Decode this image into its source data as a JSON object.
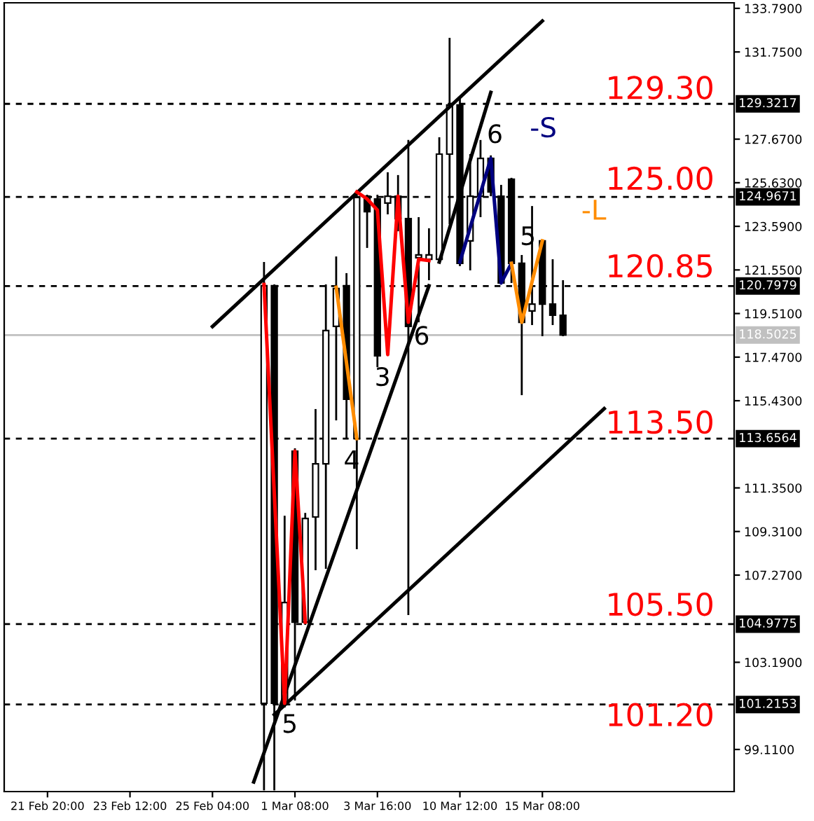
{
  "chart_data": {
    "type": "candlestick",
    "categories": [
      "21 Feb 20:00",
      null,
      null,
      null,
      null,
      null,
      null,
      null,
      "23 Feb 12:00",
      null,
      null,
      null,
      null,
      null,
      null,
      null,
      "25 Feb 04:00",
      null,
      null,
      null,
      null,
      null,
      null,
      null,
      "1 Mar 08:00",
      null,
      null,
      null,
      null,
      null,
      null,
      null,
      "3 Mar 16:00",
      null,
      null,
      null,
      null,
      null,
      null,
      null,
      "10 Mar 12:00",
      null,
      null,
      null,
      null,
      null,
      null,
      null,
      "15 Mar 08:00",
      null,
      null,
      null,
      null,
      null,
      null,
      null,
      null,
      null,
      null,
      null,
      null,
      null,
      null,
      null,
      null,
      null,
      null
    ],
    "ohlc": [
      null,
      null,
      null,
      null,
      null,
      null,
      null,
      null,
      null,
      null,
      null,
      null,
      null,
      null,
      null,
      null,
      null,
      null,
      null,
      null,
      null,
      [
        101.27,
        121.92,
        97.2,
        120.81
      ],
      [
        120.81,
        120.87,
        97.2,
        101.27
      ],
      [
        101.27,
        110.05,
        101.07,
        105.99
      ],
      [
        113.07,
        113.2,
        101.4,
        105.07
      ],
      [
        105.07,
        110.18,
        104.94,
        109.92
      ],
      [
        109.99,
        115.04,
        107.5,
        112.48
      ],
      [
        112.48,
        120.87,
        107.56,
        118.71
      ],
      [
        118.91,
        122.18,
        114.51,
        120.68
      ],
      [
        120.81,
        121.4,
        113.66,
        115.5
      ],
      [
        113.66,
        125.13,
        108.48,
        124.94
      ],
      [
        125.0,
        125.07,
        122.58,
        124.28
      ],
      [
        124.87,
        125.07,
        117.0,
        117.53
      ],
      [
        124.68,
        126.12,
        124.15,
        125.0
      ],
      [
        125.0,
        125.99,
        123.36,
        123.95
      ],
      [
        123.95,
        127.63,
        105.4,
        118.91
      ],
      [
        122.12,
        124.02,
        119.1,
        122.25
      ],
      [
        122.05,
        123.5,
        121.07,
        122.25
      ],
      [
        122.05,
        127.76,
        121.92,
        126.97
      ],
      [
        126.97,
        132.41,
        123.69,
        129.27
      ],
      [
        129.27,
        129.59,
        121.73,
        121.86
      ],
      [
        122.91,
        126.97,
        121.53,
        125.0
      ],
      [
        125.0,
        127.63,
        124.02,
        126.77
      ],
      [
        126.77,
        126.91,
        125.0,
        125.2
      ],
      [
        125.0,
        125.53,
        120.87,
        120.94
      ],
      [
        125.79,
        125.86,
        120.94,
        121.86
      ],
      [
        121.86,
        122.25,
        115.69,
        119.1
      ],
      [
        119.63,
        124.54,
        118.97,
        119.95
      ],
      [
        122.91,
        122.97,
        118.45,
        119.95
      ],
      [
        119.95,
        122.05,
        118.97,
        119.43
      ],
      [
        119.43,
        121.07,
        118.45,
        118.51
      ],
      null,
      null,
      null,
      null,
      null,
      null,
      null,
      null,
      null,
      null,
      null,
      null,
      null,
      null,
      null,
      null
    ],
    "colors": [
      null,
      null,
      null,
      null,
      null,
      null,
      null,
      null,
      null,
      null,
      null,
      null,
      null,
      null,
      null,
      null,
      null,
      null,
      null,
      null,
      null,
      "#ffffff",
      "#000000",
      "#ffffff",
      "#000000",
      "#ffffff",
      "#ffffff",
      "#ffffff",
      "#ffffff",
      "#000000",
      "#ffffff",
      "#000000",
      "#000000",
      "#ffffff",
      "#000000",
      "#000000",
      "#ffffff",
      "#ffffff",
      "#ffffff",
      "#ffffff",
      "#000000",
      "#ffffff",
      "#ffffff",
      "#000000",
      "#000000",
      "#000000",
      "#000000",
      "#ffffff",
      "#000000",
      "#000000",
      "#000000",
      null,
      null,
      null,
      null,
      null,
      null,
      null,
      null,
      null,
      null,
      null,
      null,
      null,
      null,
      null,
      null
    ],
    "series": [
      {
        "type": "line",
        "color": "#000000",
        "values": [
          null,
          null,
          null,
          null,
          null,
          null,
          null,
          null,
          null,
          null,
          null,
          null,
          null,
          null,
          null,
          null,
          118.9,
          null,
          null,
          null,
          null,
          null,
          null,
          null,
          null,
          null,
          null,
          null,
          null,
          null,
          null,
          null,
          null,
          null,
          null,
          null,
          null,
          null,
          null,
          null,
          null,
          null,
          null,
          null,
          null,
          null,
          null,
          null,
          133.2,
          null,
          null,
          null,
          null,
          null,
          null,
          null,
          null,
          null,
          null,
          null,
          null,
          null,
          null,
          null,
          null,
          null,
          null
        ]
      },
      {
        "type": "line",
        "color": "#000000",
        "values": [
          null,
          null,
          null,
          null,
          null,
          null,
          null,
          null,
          null,
          null,
          null,
          null,
          null,
          null,
          null,
          null,
          null,
          null,
          null,
          null,
          null,
          null,
          100.74,
          null,
          null,
          null,
          null,
          null,
          null,
          null,
          null,
          null,
          null,
          null,
          null,
          null,
          null,
          null,
          null,
          null,
          null,
          null,
          null,
          null,
          null,
          null,
          null,
          null,
          null,
          null,
          null,
          null,
          null,
          null,
          115.06,
          null,
          null,
          null,
          null,
          null,
          null,
          null,
          null,
          null,
          null,
          null,
          null
        ]
      },
      {
        "type": "line",
        "color": "#000000",
        "values": [
          null,
          null,
          null,
          null,
          null,
          null,
          null,
          null,
          null,
          null,
          null,
          null,
          null,
          null,
          null,
          null,
          null,
          null,
          null,
          null,
          97.59,
          null,
          null,
          null,
          null,
          null,
          null,
          null,
          null,
          null,
          null,
          null,
          null,
          null,
          null,
          null,
          null,
          120.81,
          null,
          null,
          null,
          null,
          null,
          null,
          null,
          null,
          null,
          null,
          null,
          null,
          null,
          null,
          null,
          null,
          null,
          null,
          null,
          null,
          null,
          null,
          null,
          null,
          null,
          null,
          null,
          null,
          null
        ]
      },
      {
        "type": "line",
        "color": "#000000",
        "values": [
          null,
          null,
          null,
          null,
          null,
          null,
          null,
          null,
          null,
          null,
          null,
          null,
          null,
          null,
          null,
          null,
          null,
          null,
          null,
          null,
          null,
          null,
          null,
          null,
          null,
          null,
          null,
          null,
          null,
          null,
          null,
          null,
          null,
          null,
          null,
          null,
          null,
          null,
          121.92,
          null,
          null,
          null,
          null,
          129.86,
          null,
          null,
          null,
          null,
          null,
          null,
          null,
          null,
          null,
          null,
          null,
          null,
          null,
          null,
          null,
          null,
          null,
          null,
          null,
          null,
          null,
          null,
          null
        ]
      },
      {
        "type": "line",
        "color": "#ff0000",
        "values": [
          null,
          null,
          null,
          null,
          null,
          null,
          null,
          null,
          null,
          null,
          null,
          null,
          null,
          null,
          null,
          null,
          null,
          null,
          null,
          null,
          null,
          120.87,
          null,
          101.27,
          113.07,
          105.07,
          null,
          null,
          null,
          null,
          null,
          null,
          null,
          null,
          null,
          null,
          null,
          null,
          null,
          null,
          null,
          null,
          null,
          null,
          null,
          null,
          null,
          null,
          null,
          null,
          null,
          null,
          null,
          null,
          null,
          null,
          null,
          null,
          null,
          null,
          null,
          null,
          null,
          null,
          null,
          null,
          null
        ]
      },
      {
        "type": "line",
        "color": "#ff8c00",
        "values": [
          null,
          null,
          null,
          null,
          null,
          null,
          null,
          null,
          null,
          null,
          null,
          null,
          null,
          null,
          null,
          null,
          null,
          null,
          null,
          null,
          null,
          null,
          null,
          null,
          null,
          null,
          null,
          null,
          120.74,
          null,
          113.66,
          null,
          null,
          null,
          null,
          null,
          null,
          null,
          null,
          null,
          null,
          null,
          null,
          null,
          null,
          null,
          null,
          null,
          null,
          null,
          null,
          null,
          null,
          null,
          null,
          null,
          null,
          null,
          null,
          null,
          null,
          null,
          null,
          null,
          null,
          null,
          null
        ]
      },
      {
        "type": "line",
        "color": "#ff0000",
        "values": [
          null,
          null,
          null,
          null,
          null,
          null,
          null,
          null,
          null,
          null,
          null,
          null,
          null,
          null,
          null,
          null,
          null,
          null,
          null,
          null,
          null,
          null,
          null,
          null,
          null,
          null,
          null,
          null,
          null,
          null,
          125.2,
          124.87,
          124.35,
          117.59,
          125.0,
          119.1,
          122.05,
          121.99,
          null,
          null,
          null,
          null,
          null,
          null,
          null,
          null,
          null,
          null,
          null,
          null,
          null,
          null,
          null,
          null,
          null,
          null,
          null,
          null,
          null,
          null,
          null,
          null,
          null,
          null,
          null,
          null,
          null
        ]
      },
      {
        "type": "line",
        "color": "#000080",
        "name": "-S",
        "values": [
          null,
          null,
          null,
          null,
          null,
          null,
          null,
          null,
          null,
          null,
          null,
          null,
          null,
          null,
          null,
          null,
          null,
          null,
          null,
          null,
          null,
          null,
          null,
          null,
          null,
          null,
          null,
          null,
          null,
          null,
          null,
          null,
          null,
          null,
          null,
          null,
          null,
          null,
          null,
          null,
          121.92,
          null,
          null,
          126.77,
          120.94,
          121.86,
          null,
          null,
          null,
          null,
          null,
          null,
          null,
          null,
          null,
          null,
          null,
          null,
          null,
          null,
          null,
          null,
          null,
          null,
          null,
          null,
          null
        ]
      },
      {
        "type": "line",
        "color": "#ff8c00",
        "name": "-L",
        "values": [
          null,
          null,
          null,
          null,
          null,
          null,
          null,
          null,
          null,
          null,
          null,
          null,
          null,
          null,
          null,
          null,
          null,
          null,
          null,
          null,
          null,
          null,
          null,
          null,
          null,
          null,
          null,
          null,
          null,
          null,
          null,
          null,
          null,
          null,
          null,
          null,
          null,
          null,
          null,
          null,
          null,
          null,
          null,
          null,
          null,
          121.86,
          119.1,
          null,
          122.91,
          null,
          null,
          null,
          null,
          null,
          null,
          null,
          null,
          null,
          null,
          null,
          null,
          null,
          null,
          null,
          null,
          null,
          null
        ]
      }
    ],
    "ylim": [
      97.14,
      134.05
    ],
    "yticks": [
      {
        "value": 99.11,
        "label": "99.1100"
      },
      {
        "value": 103.19,
        "label": "103.1900"
      },
      {
        "value": 107.27,
        "label": "107.2700"
      },
      {
        "value": 109.31,
        "label": "109.3100"
      },
      {
        "value": 111.35,
        "label": "111.3500"
      },
      {
        "value": 115.43,
        "label": "115.4300"
      },
      {
        "value": 117.47,
        "label": "117.4700"
      },
      {
        "value": 119.51,
        "label": "119.5100"
      },
      {
        "value": 121.55,
        "label": "121.5500"
      },
      {
        "value": 123.59,
        "label": "123.5900"
      },
      {
        "value": 125.63,
        "label": "125.6300"
      },
      {
        "value": 127.67,
        "label": "127.6700"
      },
      {
        "value": 131.75,
        "label": "131.7500"
      },
      {
        "value": 133.79,
        "label": "133.7900"
      }
    ],
    "ref_lines": [
      {
        "axis": "y",
        "value": 129.3217,
        "label": "129.3217",
        "color": "#000000",
        "line_style": "dashed"
      },
      {
        "axis": "y",
        "value": 124.9671,
        "label": "124.9671",
        "color": "#000000",
        "line_style": "dashed"
      },
      {
        "axis": "y",
        "value": 120.7979,
        "label": "120.7979",
        "color": "#000000",
        "line_style": "dashed"
      },
      {
        "axis": "y",
        "value": 118.5025,
        "label": "118.5025",
        "color": "#c0c0c0",
        "line_style": "solid"
      },
      {
        "axis": "y",
        "value": 113.6564,
        "label": "113.6564",
        "color": "#000000",
        "line_style": "dashed"
      },
      {
        "axis": "y",
        "value": 104.9775,
        "label": "104.9775",
        "color": "#000000",
        "line_style": "dashed"
      },
      {
        "axis": "y",
        "value": 101.2153,
        "label": "101.2153",
        "color": "#000000",
        "line_style": "dashed"
      }
    ],
    "annotations": [
      "129.30",
      "125.00",
      "120.85",
      "113.50",
      "105.50",
      "101.20",
      {
        "text": "5",
        "y": 101.27
      },
      {
        "text": "3",
        "y": 117.0
      },
      "6",
      {
        "text": "4",
        "y": 113.66
      },
      {
        "text": "6",
        "y": 126.77
      },
      {
        "text": "5",
        "y": 122.18
      }
    ],
    "grid": false,
    "legend": false
  }
}
